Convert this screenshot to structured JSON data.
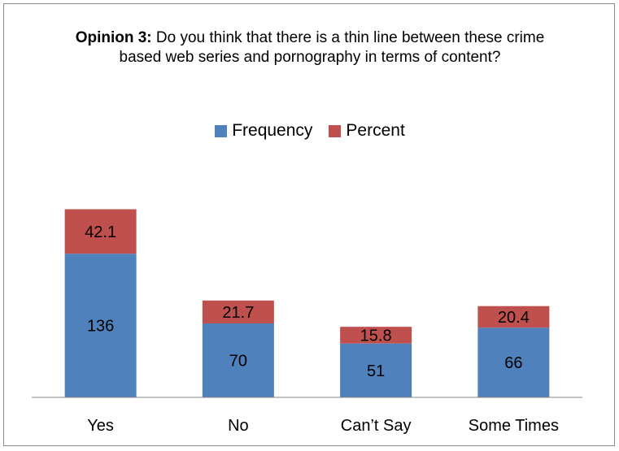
{
  "colors": {
    "frequency": "#4f81bd",
    "percent": "#c0504d",
    "axis": "#868686"
  },
  "title": {
    "bold": "Opinion 3:",
    "text": "Do you think that there is a thin line between these crime based web series and pornography in terms of content?"
  },
  "chart_data": {
    "type": "bar",
    "stacked": true,
    "title": "Opinion 3: Do you think that there is a thin line between these crime based web series and pornography in terms of content?",
    "categories": [
      "Yes",
      "No",
      "Can’t Say",
      "Some Times"
    ],
    "series": [
      {
        "name": "Frequency",
        "values": [
          136,
          70,
          51,
          66
        ]
      },
      {
        "name": "Percent",
        "values": [
          42.1,
          21.7,
          15.8,
          20.4
        ]
      }
    ],
    "xlabel": "",
    "ylabel": "",
    "ylim": [
      0,
      200
    ],
    "grid": false,
    "legend": "top-center",
    "data_labels": true
  }
}
